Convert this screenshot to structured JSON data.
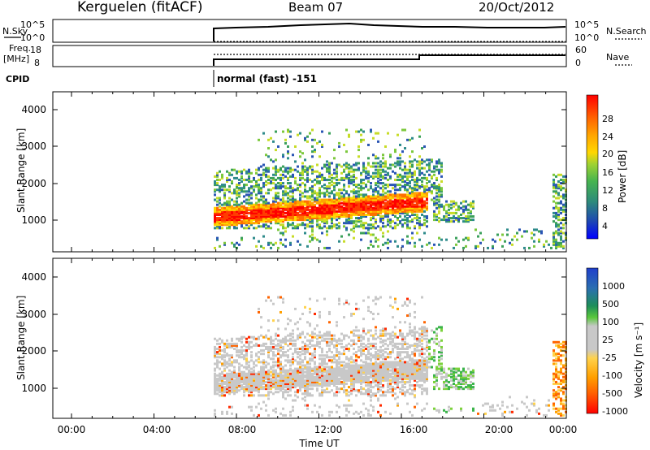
{
  "header": {
    "station": "Kerguelen (fitACF)",
    "beam": "Beam 07",
    "date": "20/Oct/2012"
  },
  "nsky_panel": {
    "left_label": "N.Sky",
    "left_ticks": [
      "10^5",
      "10^0"
    ],
    "right_ticks": [
      "10^5",
      "10^0"
    ],
    "right_label": "N.Search"
  },
  "freq_panel": {
    "left_label_1": "Freq.",
    "left_label_2": "[MHz]",
    "left_ticks": [
      "18",
      "8"
    ],
    "right_ticks": [
      "60",
      "0"
    ],
    "right_label": "Nave"
  },
  "cpid": {
    "label": "CPID",
    "value": "normal (fast) -151"
  },
  "power_panel": {
    "ylabel": "Slant Range [km]",
    "yticks": [
      "4000",
      "3000",
      "2000",
      "1000"
    ]
  },
  "velocity_panel": {
    "ylabel": "Slant Range [km]",
    "yticks": [
      "4000",
      "3000",
      "2000",
      "1000"
    ]
  },
  "power_colorbar": {
    "label": "Power [dB]",
    "ticks": [
      "28",
      "24",
      "20",
      "16",
      "12",
      "8",
      "4"
    ],
    "colors": [
      "#0000ff",
      "#2a55b4",
      "#2e8b8b",
      "#3aa05a",
      "#7cc83c",
      "#c8dc28",
      "#ffd700",
      "#ffa500",
      "#ff7000",
      "#ff3c00",
      "#ff0000"
    ]
  },
  "velocity_colorbar": {
    "label": "Velocity [m s⁻¹]",
    "ticks": [
      "1000",
      "500",
      "100",
      "25",
      "-25",
      "-100",
      "-500",
      "-1000"
    ],
    "colors": [
      "#2244cc",
      "#2a6fb0",
      "#1e8e5a",
      "#3cb44b",
      "#7cd23c",
      "#c8c8c8",
      "#c8c8c8",
      "#ffd24c",
      "#ffa000",
      "#ff6400",
      "#ff2a00",
      "#ff0000"
    ]
  },
  "xaxis": {
    "label": "Time UT",
    "ticks": [
      "00:00",
      "04:00",
      "08:00",
      "12:00",
      "16:00",
      "20:00",
      "00:00"
    ]
  }
}
